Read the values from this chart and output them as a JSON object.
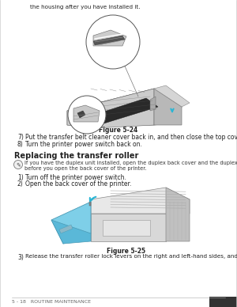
{
  "page_bg": "#ffffff",
  "border_color": "#000000",
  "text_color": "#222222",
  "gray_light": "#d8d8d8",
  "gray_mid": "#b0b0b0",
  "gray_dark": "#888888",
  "black": "#1a1a1a",
  "blue_arrow": "#29b6d5",
  "cyan_cover": "#7ecfe8",
  "cyan_cover_dark": "#5ab8d8",
  "top_text": "the housing after you have installed it.",
  "fig1_caption": "Figure 5-24",
  "item7_num": "7)",
  "item7": "Put the transfer belt cleaner cover back in, and then close the top cover.",
  "item8_num": "8)",
  "item8": "Turn the printer power switch back on.",
  "section_title": "Replacing the transfer roller",
  "note_line1": "If you have the duplex unit installed, open the duplex back cover and the duplex inside unit first",
  "note_line2": "before you open the back cover of the printer.",
  "step1_num": "1)",
  "step1": "Turn off the printer power switch.",
  "step2_num": "2)",
  "step2": "Open the back cover of the printer.",
  "fig2_caption": "Figure 5-25",
  "step3_num": "3)",
  "step3": "Release the transfer roller lock levers on the right and left-hand sides, and then lift the levers to–",
  "footer": "5 - 18   ROUTINE MAINTENANCE"
}
